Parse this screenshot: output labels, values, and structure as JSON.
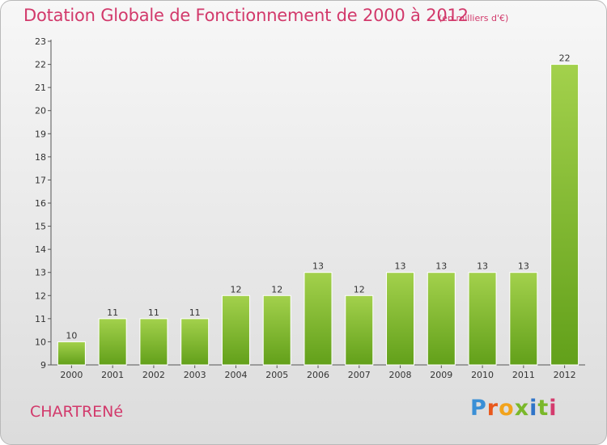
{
  "header": {
    "title": "Dotation Globale de Fonctionnement de 2000 à 2012",
    "unit": "(en milliers d'€)"
  },
  "footer": {
    "place": "CHARTRENé",
    "logo": [
      "P",
      "r",
      "o",
      "x",
      "i",
      "t",
      "i"
    ]
  },
  "colors": {
    "bar_top": "#a3d14c",
    "bar_bottom": "#62a01a",
    "title": "#d2396b"
  },
  "chart_data": {
    "type": "bar",
    "title": "Dotation Globale de Fonctionnement de 2000 à 2012",
    "subtitle": "(en milliers d'€)",
    "xlabel": "",
    "ylabel": "",
    "categories": [
      "2000",
      "2001",
      "2002",
      "2003",
      "2004",
      "2005",
      "2006",
      "2007",
      "2008",
      "2009",
      "2010",
      "2011",
      "2012"
    ],
    "values": [
      10,
      11,
      11,
      11,
      12,
      12,
      13,
      12,
      13,
      13,
      13,
      13,
      22
    ],
    "ylim": [
      9,
      23
    ],
    "yticks": [
      9,
      10,
      11,
      12,
      13,
      14,
      15,
      16,
      17,
      18,
      19,
      20,
      21,
      22,
      23
    ],
    "grid": false,
    "legend": "none"
  }
}
